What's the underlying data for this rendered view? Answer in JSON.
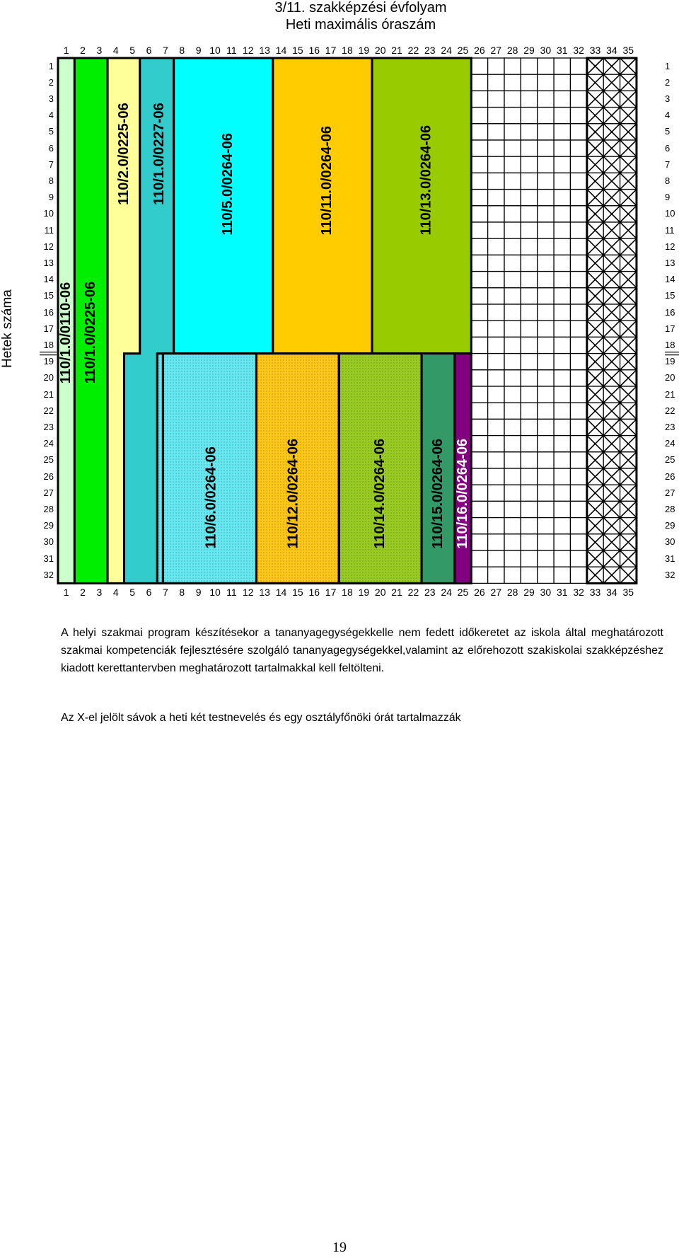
{
  "header": {
    "line1": "3/11. szakképzési évfolyam",
    "line2": "Heti maximális óraszám"
  },
  "axis": {
    "y_label": "Hetek száma",
    "hours": [
      "1",
      "2",
      "3",
      "4",
      "5",
      "6",
      "7",
      "8",
      "9",
      "10",
      "11",
      "12",
      "13",
      "14",
      "15",
      "16",
      "17",
      "18",
      "19",
      "20",
      "21",
      "22",
      "23",
      "24",
      "25",
      "26",
      "27",
      "28",
      "29",
      "30",
      "31",
      "32",
      "33",
      "34",
      "35"
    ],
    "weeks": [
      "1",
      "2",
      "3",
      "4",
      "5",
      "6",
      "7",
      "8",
      "9",
      "10",
      "11",
      "12",
      "13",
      "14",
      "15",
      "16",
      "17",
      "18",
      "19",
      "20",
      "21",
      "22",
      "23",
      "24",
      "25",
      "26",
      "27",
      "28",
      "29",
      "30",
      "31",
      "32"
    ]
  },
  "blocks": [
    {
      "label": "110/1.0/0110-06",
      "color": "#ccffcc",
      "hour_from": 1,
      "hour_to": 1,
      "week_from": 1,
      "week_to": 32,
      "dotted": false
    },
    {
      "label": "110/1.0/0225-06",
      "color": "#00ee00",
      "hour_from": 2,
      "hour_to": 3,
      "week_from": 1,
      "week_to": 32,
      "dotted": false
    },
    {
      "label": "110/2.0/0225-06",
      "color": "#ffff99",
      "hour_from": 4,
      "hour_to": 5,
      "week_from": 1,
      "week_to": 32,
      "dotted": false
    },
    {
      "label": "110/1.0/0227-06",
      "color": "#33cccc",
      "hour_from": 5,
      "hour_to": 7,
      "week_from": 1,
      "week_to": 32,
      "dotted": false
    },
    {
      "label": "110/5.0/0264-06",
      "color": "#00ffff",
      "hour_from": 8,
      "hour_to": 13,
      "week_from": 1,
      "week_to": 18,
      "dotted": false
    },
    {
      "label": "110/11.0/0264-06",
      "color": "#ffcc00",
      "hour_from": 14,
      "hour_to": 19,
      "week_from": 1,
      "week_to": 18,
      "dotted": false
    },
    {
      "label": "110/13.0/0264-06",
      "color": "#99cc00",
      "hour_from": 20,
      "hour_to": 25,
      "week_from": 1,
      "week_to": 18,
      "dotted": false
    },
    {
      "label": "110/6.0/0264-06",
      "color": "#66e8f0",
      "hour_from": 7,
      "hour_to": 12,
      "week_from": 19,
      "week_to": 32,
      "dotted": true
    },
    {
      "label": "110/12.0/0264-06",
      "color": "#ffc61a",
      "hour_from": 13,
      "hour_to": 17,
      "week_from": 19,
      "week_to": 32,
      "dotted": true
    },
    {
      "label": "110/14.0/0264-06",
      "color": "#99cc22",
      "hour_from": 18,
      "hour_to": 22,
      "week_from": 19,
      "week_to": 32,
      "dotted": true
    },
    {
      "label": "110/15.0/0264-06",
      "color": "#339966",
      "hour_from": 23,
      "hour_to": 24,
      "week_from": 19,
      "week_to": 32,
      "dotted": false
    },
    {
      "label": "110/16.0/0264-06",
      "color": "#800080",
      "hour_from": 25,
      "hour_to": 25,
      "week_from": 19,
      "week_to": 32,
      "dotted": false
    }
  ],
  "legend_marks": {
    "empty_hours_from": 26,
    "empty_hours_to": 32,
    "x_hours_from": 33,
    "x_hours_to": 35
  },
  "notes": {
    "paragraph1": "A helyi szakmai program készítésekor a tananyagegységekkelle nem fedett időkeretet az iskola által meghatározott szakmai kompetenciák fejlesztésére szolgáló tananyagegységekkel,valamint az előrehozott szakiskolai szakképzéshez kiadott kerettantervben meghatározott tartalmakkal kell feltölteni.",
    "paragraph2": "Az X-el jelölt sávok a heti két testnevelés és egy osztályfőnöki órát tartalmazzák"
  },
  "page_number": "19"
}
